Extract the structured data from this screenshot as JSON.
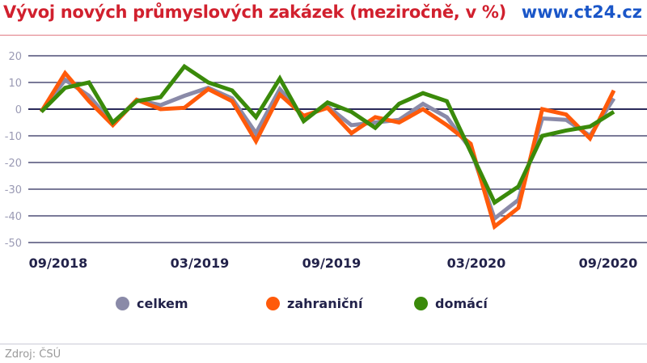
{
  "header": {
    "title": "Vývoj nových průmyslových zakázek (meziročně, v %)",
    "brand": "www.ct24.cz"
  },
  "footer": {
    "source": "Zdroj: ČSÚ"
  },
  "chart_data": {
    "type": "line",
    "title": "Vývoj nových průmyslových zakázek (meziročně, v %)",
    "xlabel": "",
    "ylabel": "",
    "ylim": [
      -50,
      20
    ],
    "yticks": [
      "20",
      "10",
      "0",
      "-10",
      "-20",
      "-30",
      "-40",
      "-50"
    ],
    "grid": true,
    "legend": "bottom",
    "x": [
      "09/2018",
      "10/2018",
      "11/2018",
      "12/2018",
      "01/2019",
      "02/2019",
      "03/2019",
      "04/2019",
      "05/2019",
      "06/2019",
      "07/2019",
      "08/2019",
      "09/2019",
      "10/2019",
      "11/2019",
      "12/2019",
      "01/2020",
      "02/2020",
      "03/2020",
      "04/2020",
      "05/2020",
      "06/2020",
      "07/2020",
      "08/2020",
      "09/2020"
    ],
    "xtick_labels": [
      "09/2018",
      "03/2019",
      "09/2019",
      "03/2020",
      "09/2020"
    ],
    "series": [
      {
        "name": "celkem",
        "color": "#8a8aa8",
        "values": [
          -1,
          11,
          5,
          -5.5,
          3.5,
          1.5,
          5,
          8,
          4,
          -9,
          7.5,
          -3,
          1,
          -6,
          -5,
          -4,
          2,
          -3,
          -15,
          -41,
          -34,
          -3.5,
          -4,
          -10,
          4
        ]
      },
      {
        "name": "zahraniční",
        "color": "#ff5a0a",
        "values": [
          -1,
          13.5,
          3,
          -6,
          3.5,
          0,
          0.5,
          7.5,
          3,
          -12,
          5.5,
          -2.5,
          0.5,
          -9,
          -3,
          -5,
          0,
          -6,
          -13,
          -44,
          -37,
          0,
          -2,
          -11,
          7
        ]
      },
      {
        "name": "domácí",
        "color": "#3a8a0a",
        "values": [
          -1,
          8,
          10,
          -5,
          3,
          4.5,
          16,
          10,
          7,
          -3,
          11.5,
          -4.5,
          2.5,
          -1,
          -7,
          2,
          6,
          3,
          -16,
          -35,
          -29,
          -10,
          -8,
          -6.5,
          -1
        ]
      }
    ]
  }
}
